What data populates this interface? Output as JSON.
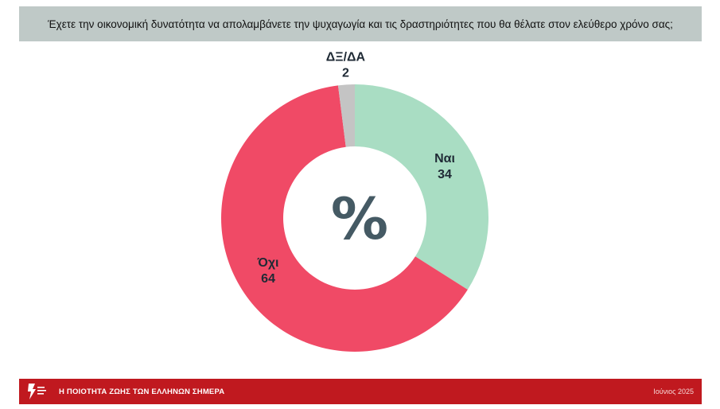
{
  "question": "Έχετε την οικονομική δυνατότητα να απολαμβάνετε την ψυχαγωγία και τις δραστηριότητες που θα θέλατε στον ελεύθερο χρόνο σας;",
  "chart_data": {
    "type": "pie",
    "donut": true,
    "center_label": "%",
    "slices": [
      {
        "label": "Ναι",
        "value": 34,
        "color": "#a9ddc3"
      },
      {
        "label": "Όχι",
        "value": 64,
        "color": "#f04a66"
      },
      {
        "label": "ΔΞ/ΔΑ",
        "value": 2,
        "color": "#c4c4c4"
      }
    ]
  },
  "footer": {
    "title": "Η ΠΟΙΟΤΗΤΑ ΖΩΗΣ ΤΩΝ ΕΛΛΗΝΩΝ ΣΗΜΕΡΑ",
    "date": "Ιούνιος 2025",
    "logo_icon": "organization-logo-icon"
  },
  "colors": {
    "header_bg": "#bfc9c7",
    "footer_bg": "#c0191f",
    "center_symbol": "#455a64"
  }
}
